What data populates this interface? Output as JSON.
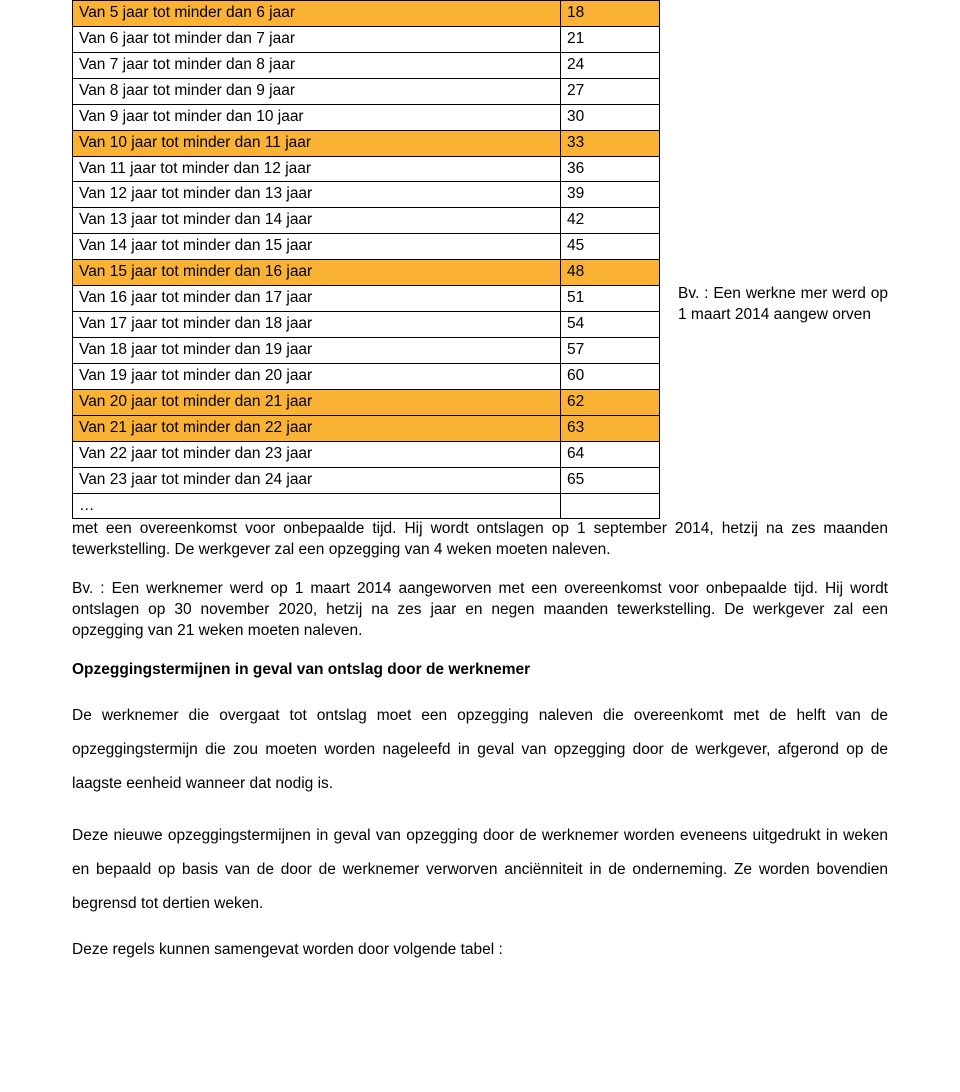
{
  "table": {
    "rows": [
      {
        "label": "Van 5 jaar tot minder dan 6 jaar",
        "value": "18",
        "highlight": true
      },
      {
        "label": "Van 6 jaar tot minder dan 7 jaar",
        "value": "21",
        "highlight": false
      },
      {
        "label": "Van 7 jaar tot minder dan 8 jaar",
        "value": "24",
        "highlight": false
      },
      {
        "label": "Van 8 jaar tot minder dan 9 jaar",
        "value": "27",
        "highlight": false
      },
      {
        "label": "Van 9 jaar tot minder dan 10 jaar",
        "value": "30",
        "highlight": false
      },
      {
        "label": "Van 10 jaar tot minder dan 11 jaar",
        "value": "33",
        "highlight": true
      },
      {
        "label": "Van 11 jaar tot minder dan 12 jaar",
        "value": "36",
        "highlight": false
      },
      {
        "label": "Van 12 jaar tot minder dan 13 jaar",
        "value": "39",
        "highlight": false
      },
      {
        "label": "Van 13 jaar tot minder dan 14 jaar",
        "value": "42",
        "highlight": false
      },
      {
        "label": "Van 14 jaar tot minder dan 15 jaar",
        "value": "45",
        "highlight": false
      },
      {
        "label": "Van 15 jaar tot minder dan 16 jaar",
        "value": "48",
        "highlight": true
      },
      {
        "label": "Van 16 jaar tot minder dan 17 jaar",
        "value": "51",
        "highlight": false
      },
      {
        "label": "Van 17 jaar tot minder dan 18 jaar",
        "value": "54",
        "highlight": false
      },
      {
        "label": "Van 18 jaar tot minder dan 19 jaar",
        "value": "57",
        "highlight": false
      },
      {
        "label": "Van 19 jaar tot minder dan 20 jaar",
        "value": "60",
        "highlight": false
      },
      {
        "label": "Van 20 jaar tot minder dan 21 jaar",
        "value": "62",
        "highlight": true
      },
      {
        "label": "Van 21 jaar tot minder dan 22 jaar",
        "value": "63",
        "highlight": true
      },
      {
        "label": "Van 22 jaar tot minder dan 23 jaar",
        "value": "64",
        "highlight": false
      },
      {
        "label": "Van 23 jaar tot minder dan 24 jaar",
        "value": "65",
        "highlight": false
      }
    ],
    "ellipsis": "…",
    "highlight_color": "#f9b233",
    "border_color": "#000000"
  },
  "side_text": "Bv. : Een werkne mer werd op 1 maart 2014 aangew orven",
  "para_after_table": "met een overeenkomst voor onbepaalde tijd. Hij wordt ontslagen op 1 september 2014, hetzij na zes maanden tewerkstelling. De werkgever zal een opzegging van 4 weken moeten naleven.",
  "para_bv2": "Bv. : Een werknemer werd op 1 maart 2014 aangeworven met een overeenkomst voor onbepaalde tijd. Hij wordt ontslagen op 30 november  2020, hetzij na zes jaar en negen maanden tewerkstelling. De werkgever zal een opzegging van 21 weken moeten naleven.",
  "heading": "Opzeggingstermijnen in geval van ontslag door de werknemer",
  "para3": "De werknemer die overgaat tot ontslag moet een opzegging naleven die overeenkomt met de helft van de opzeggingstermijn die zou moeten worden nageleefd in geval van opzegging door de werkgever, afgerond op de laagste eenheid wanneer dat nodig is.",
  "para4": "Deze nieuwe opzeggingstermijnen in geval van opzegging door de werknemer worden eveneens uitgedrukt in weken en bepaald op basis van de door de werknemer verworven anciënniteit in de onderneming. Ze worden bovendien begrensd tot dertien weken.",
  "para5": "Deze regels kunnen samengevat worden door volgende tabel :"
}
